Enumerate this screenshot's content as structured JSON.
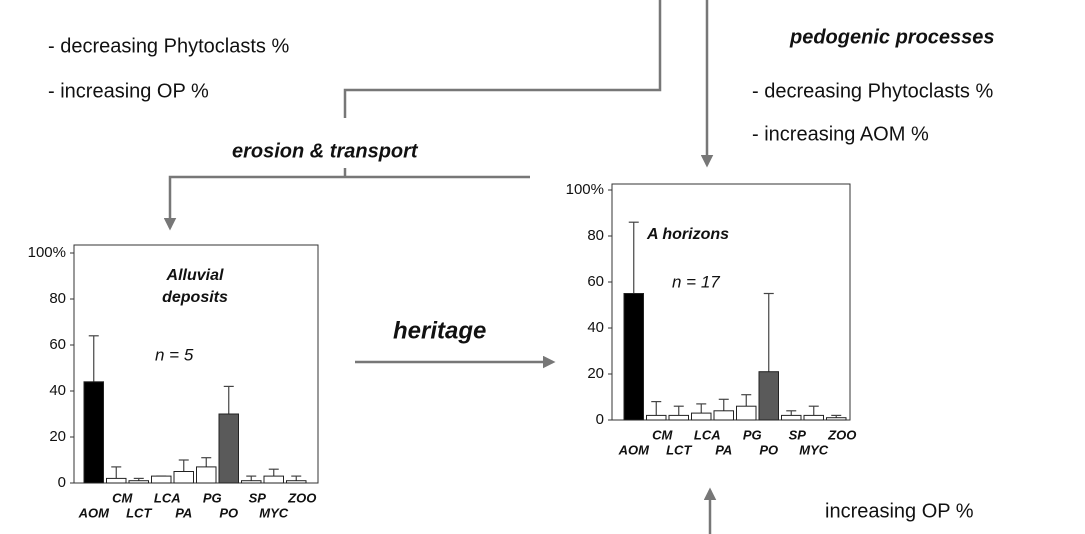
{
  "texts": {
    "left_1": "- decreasing Phytoclasts %",
    "left_2": "- increasing OP %",
    "pedogenic": "pedogenic processes",
    "right_1": "- decreasing Phytoclasts %",
    "right_2": "- increasing AOM %",
    "erosion": "erosion & transport",
    "heritage": "heritage",
    "bottom": "increasing OP %"
  },
  "chart_data": [
    {
      "type": "bar",
      "title": [
        "Alluvial",
        "deposits"
      ],
      "annotation": "n = 5",
      "categories": [
        "AOM",
        "CM",
        "LCT",
        "LCA",
        "PA",
        "PG",
        "PO",
        "SP",
        "MYC",
        "ZOO"
      ],
      "values": [
        44,
        2,
        1,
        3,
        5,
        7,
        30,
        1,
        3,
        1
      ],
      "errors": [
        20,
        5,
        1,
        0,
        5,
        4,
        12,
        2,
        3,
        2
      ],
      "colors": [
        "#000000",
        "#ffffff",
        "#ffffff",
        "#ffffff",
        "#ffffff",
        "#ffffff",
        "#5a5a5a",
        "#ffffff",
        "#ffffff",
        "#ffffff"
      ],
      "ylim": [
        0,
        100
      ],
      "yticks": [
        0,
        20,
        40,
        60,
        80,
        {
          "value": 100,
          "label": "100%"
        }
      ]
    },
    {
      "type": "bar",
      "title": [
        "A horizons"
      ],
      "annotation": "n = 17",
      "categories": [
        "AOM",
        "CM",
        "LCT",
        "LCA",
        "PA",
        "PG",
        "PO",
        "SP",
        "MYC",
        "ZOO"
      ],
      "values": [
        55,
        2,
        2,
        3,
        4,
        6,
        21,
        2,
        2,
        1
      ],
      "errors": [
        31,
        6,
        4,
        4,
        5,
        5,
        34,
        2,
        4,
        1
      ],
      "colors": [
        "#000000",
        "#ffffff",
        "#ffffff",
        "#ffffff",
        "#ffffff",
        "#ffffff",
        "#5a5a5a",
        "#ffffff",
        "#ffffff",
        "#ffffff"
      ],
      "ylim": [
        0,
        100
      ],
      "yticks": [
        0,
        20,
        40,
        60,
        80,
        {
          "value": 100,
          "label": "100%"
        }
      ]
    }
  ]
}
